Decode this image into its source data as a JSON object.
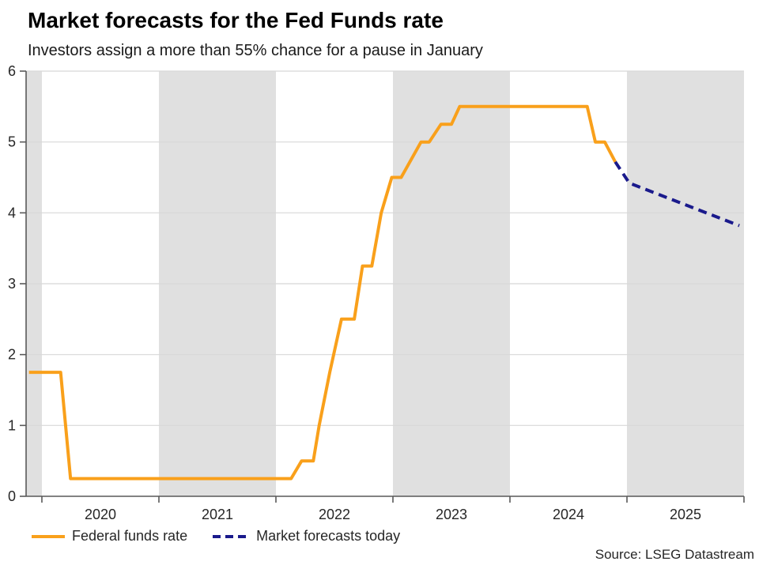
{
  "header": {
    "title": "Market forecasts for the Fed Funds rate",
    "subtitle": "Investors assign a more than 55% chance for a pause in January"
  },
  "chart_data": {
    "type": "line",
    "title": "Market forecasts for the Fed Funds rate",
    "subtitle": "Investors assign a more than 55% chance for a pause in January",
    "xlabel": "",
    "ylabel": "",
    "x_domain": [
      2019.865,
      2026.0
    ],
    "ylim": [
      0,
      6
    ],
    "y_ticks": [
      0,
      1,
      2,
      3,
      4,
      5,
      6
    ],
    "x_boundary_ticks": [
      2020,
      2021,
      2022,
      2023,
      2024,
      2025,
      2026
    ],
    "x_year_labels": [
      {
        "label": "2020",
        "center": 2020.5
      },
      {
        "label": "2021",
        "center": 2021.5
      },
      {
        "label": "2022",
        "center": 2022.5
      },
      {
        "label": "2023",
        "center": 2023.5
      },
      {
        "label": "2024",
        "center": 2024.5
      },
      {
        "label": "2025",
        "center": 2025.5
      }
    ],
    "shaded_year_bands": [
      [
        2019.865,
        2020.0
      ],
      [
        2021.0,
        2022.0
      ],
      [
        2023.0,
        2024.0
      ],
      [
        2025.0,
        2026.0
      ]
    ],
    "grid": true,
    "legend_position": "bottom-left",
    "band_color": "#E0E0E0",
    "grid_color": "#D8D8D8",
    "axis_color": "#595959",
    "tick_text_color": "#262626",
    "series": [
      {
        "name": "Federal funds rate",
        "style": "solid",
        "color": "#F9A01B",
        "points": [
          [
            2019.89,
            1.75
          ],
          [
            2020.16,
            1.75
          ],
          [
            2020.245,
            0.25
          ],
          [
            2022.13,
            0.25
          ],
          [
            2022.22,
            0.5
          ],
          [
            2022.32,
            0.5
          ],
          [
            2022.37,
            1.0
          ],
          [
            2022.46,
            1.75
          ],
          [
            2022.56,
            2.5
          ],
          [
            2022.67,
            2.5
          ],
          [
            2022.74,
            3.25
          ],
          [
            2022.82,
            3.25
          ],
          [
            2022.9,
            4.0
          ],
          [
            2022.99,
            4.5
          ],
          [
            2023.07,
            4.5
          ],
          [
            2023.24,
            5.0
          ],
          [
            2023.31,
            5.0
          ],
          [
            2023.41,
            5.25
          ],
          [
            2023.5,
            5.25
          ],
          [
            2023.57,
            5.5
          ],
          [
            2024.66,
            5.5
          ],
          [
            2024.73,
            5.0
          ],
          [
            2024.81,
            5.0
          ],
          [
            2024.9,
            4.72
          ]
        ]
      },
      {
        "name": "Market forecasts today",
        "style": "dashed",
        "color": "#1A1A8C",
        "points": [
          [
            2024.9,
            4.72
          ],
          [
            2025.02,
            4.42
          ],
          [
            2025.96,
            3.82
          ]
        ]
      }
    ]
  },
  "footer": {
    "source": "Source: LSEG Datastream"
  }
}
